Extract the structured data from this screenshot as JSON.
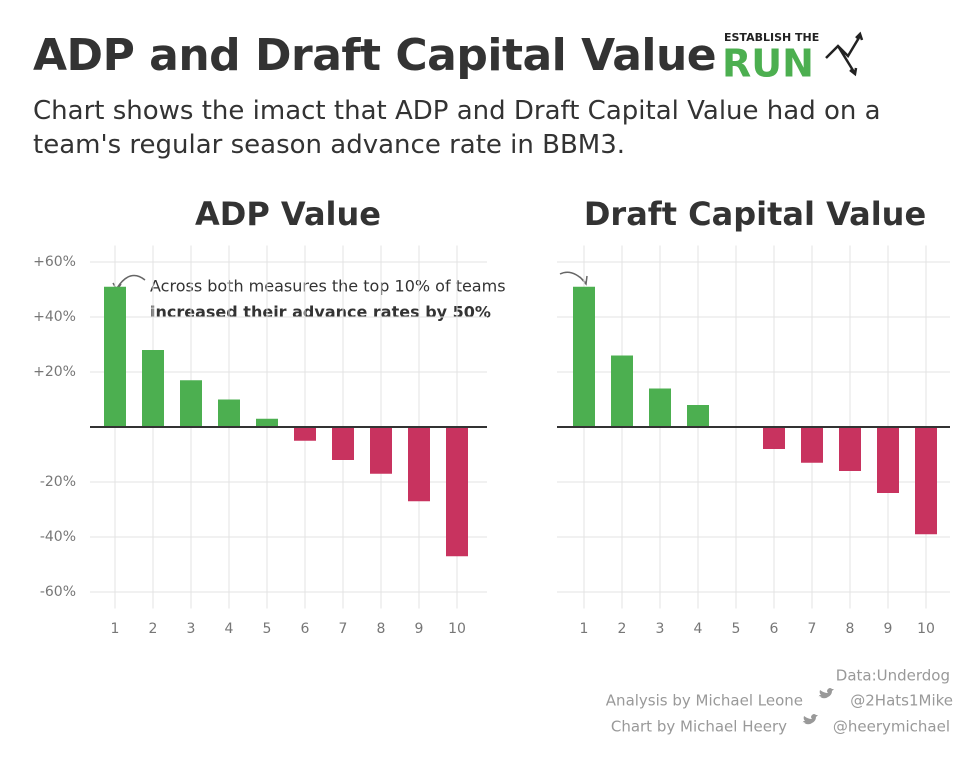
{
  "title": "ADP and Draft Capital Value",
  "subtitle": "Chart shows the imact that ADP and Draft Capital Value had on a team's regular season advance rate in BBM3.",
  "logo": {
    "top": "ESTABLISH THE",
    "main": "RUN"
  },
  "credits": {
    "data": "Data:Underdog",
    "analysis": "Analysis by Michael Leone",
    "analysis_handle": "@2Hats1Mike",
    "chart": "Chart by Michael Heery",
    "chart_handle": "@heerymichael"
  },
  "chart_data": [
    {
      "type": "bar",
      "title": "ADP Value",
      "categories": [
        "1",
        "2",
        "3",
        "4",
        "5",
        "6",
        "7",
        "8",
        "9",
        "10"
      ],
      "values": [
        51,
        28,
        17,
        10,
        3,
        -5,
        -12,
        -17,
        -27,
        -47
      ],
      "color": "#4caf50",
      "negative_color": "#c8335f",
      "ylim": [
        -66,
        66
      ],
      "yticks": [
        {
          "value": 60,
          "label": "+60%"
        },
        {
          "value": 40,
          "label": "+40%"
        },
        {
          "value": 20,
          "label": "+20%"
        },
        {
          "value": -20,
          "label": "-20%"
        },
        {
          "value": -40,
          "label": "-40%"
        },
        {
          "value": -60,
          "label": "-60%"
        }
      ],
      "grid": true,
      "annotation": {
        "line1": "Across both measures the top 10% of teams",
        "line2": "increased their advance rates by 50%"
      }
    },
    {
      "type": "bar",
      "title": "Draft Capital Value",
      "categories": [
        "1",
        "2",
        "3",
        "4",
        "5",
        "6",
        "7",
        "8",
        "9",
        "10"
      ],
      "values": [
        51,
        26,
        14,
        8,
        0,
        -8,
        -13,
        -16,
        -24,
        -39
      ],
      "color": "#4caf50",
      "negative_color": "#c8335f",
      "ylim": [
        -66,
        66
      ],
      "grid": true
    }
  ]
}
